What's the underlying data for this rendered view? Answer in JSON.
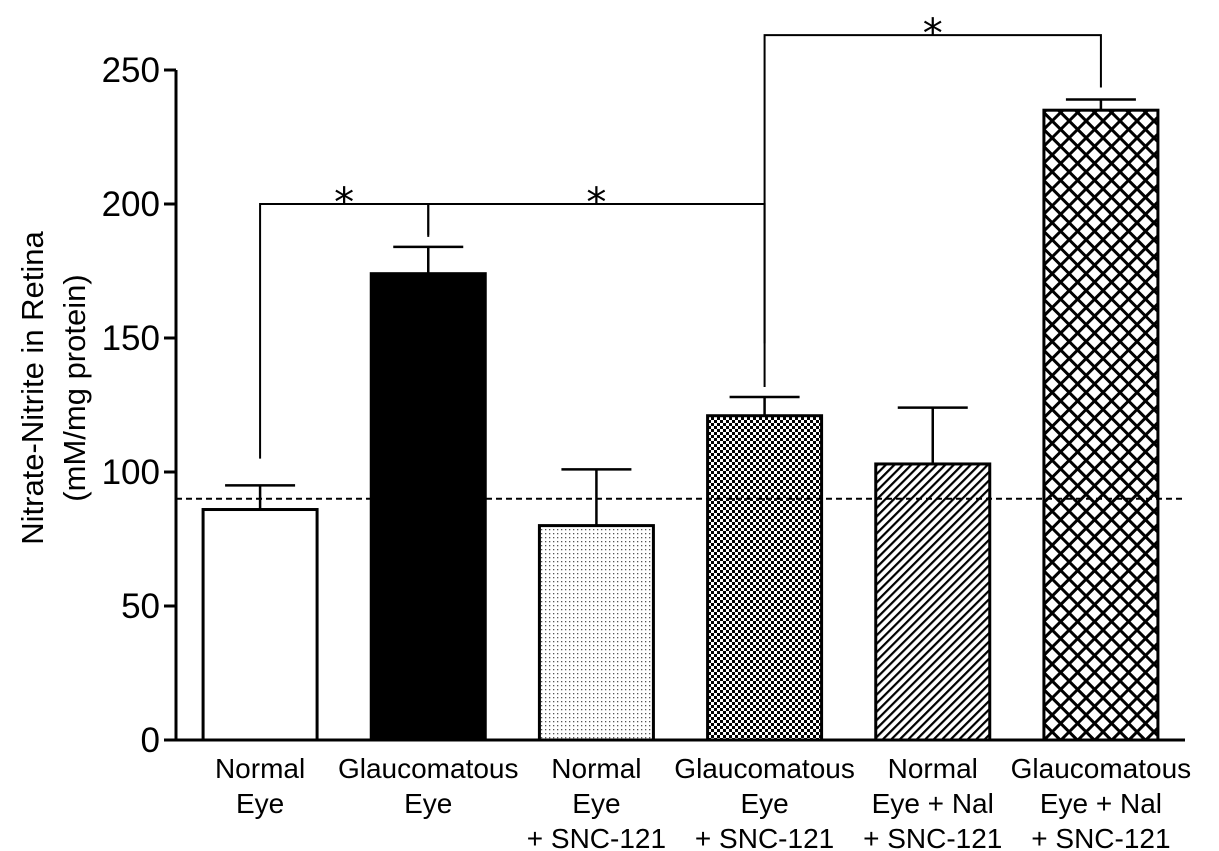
{
  "chart_data": {
    "type": "bar",
    "ylabel": [
      "Nitrate-Nitrite in Retina",
      "(mM/mg protein)"
    ],
    "ylim": [
      0,
      250
    ],
    "yticks": [
      0,
      50,
      100,
      150,
      200,
      250
    ],
    "categories": [
      [
        "Normal",
        "Eye"
      ],
      [
        "Glaucomatous",
        "Eye"
      ],
      [
        "Normal",
        "Eye",
        "+ SNC-121"
      ],
      [
        "Glaucomatous",
        "Eye",
        "+ SNC-121"
      ],
      [
        "Normal",
        "Eye + Nal",
        "+ SNC-121"
      ],
      [
        "Glaucomatous",
        "Eye + Nal",
        "+ SNC-121"
      ]
    ],
    "values": [
      86,
      174,
      80,
      121,
      103,
      235
    ],
    "errors": [
      9,
      10,
      21,
      7,
      21,
      4
    ],
    "fills": [
      "white",
      "solid",
      "dots",
      "checker",
      "diagonal",
      "crosshatch"
    ],
    "reference_line": 90,
    "significance": [
      {
        "from": 0,
        "to": 1,
        "label": "*",
        "level": 200
      },
      {
        "from": 1,
        "to": 3,
        "label": "*",
        "level": 200
      },
      {
        "from": 3,
        "to": 5,
        "label": "*",
        "level": 263
      }
    ],
    "grid": false,
    "colors": {
      "bar_edge": "#000000",
      "solid": "#000000",
      "background": "#ffffff"
    }
  }
}
